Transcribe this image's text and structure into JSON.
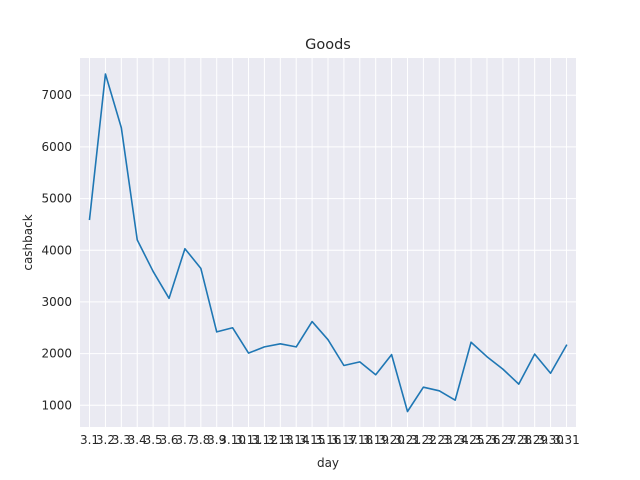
{
  "chart_data": {
    "type": "line",
    "title": "Goods",
    "xlabel": "day",
    "ylabel": "cashback",
    "categories": [
      "3.1",
      "3.2",
      "3.3",
      "3.4",
      "3.5",
      "3.6",
      "3.7",
      "3.8",
      "3.9",
      "3.10",
      "3.11",
      "3.12",
      "3.13",
      "3.14",
      "3.15",
      "3.16",
      "3.17",
      "3.18",
      "3.19",
      "3.20",
      "3.21",
      "3.22",
      "3.23",
      "3.24",
      "3.25",
      "3.26",
      "3.27",
      "3.28",
      "3.29",
      "3.30",
      "3.31"
    ],
    "series": [
      {
        "values": [
          4600,
          7410,
          6370,
          4200,
          3590,
          3070,
          4030,
          3650,
          2420,
          2500,
          2010,
          2130,
          2190,
          2130,
          2620,
          2270,
          1770,
          1840,
          1590,
          1980,
          880,
          1350,
          1280,
          1100,
          2220,
          1940,
          1700,
          1410,
          1990,
          1620,
          2160
        ],
        "color": "#1f77b4"
      }
    ],
    "ylim": [
      580,
      7720
    ],
    "yticks": [
      1000,
      2000,
      3000,
      4000,
      5000,
      6000,
      7000
    ],
    "grid": true,
    "background": "#eaeaf2",
    "grid_color": "#ffffff"
  }
}
